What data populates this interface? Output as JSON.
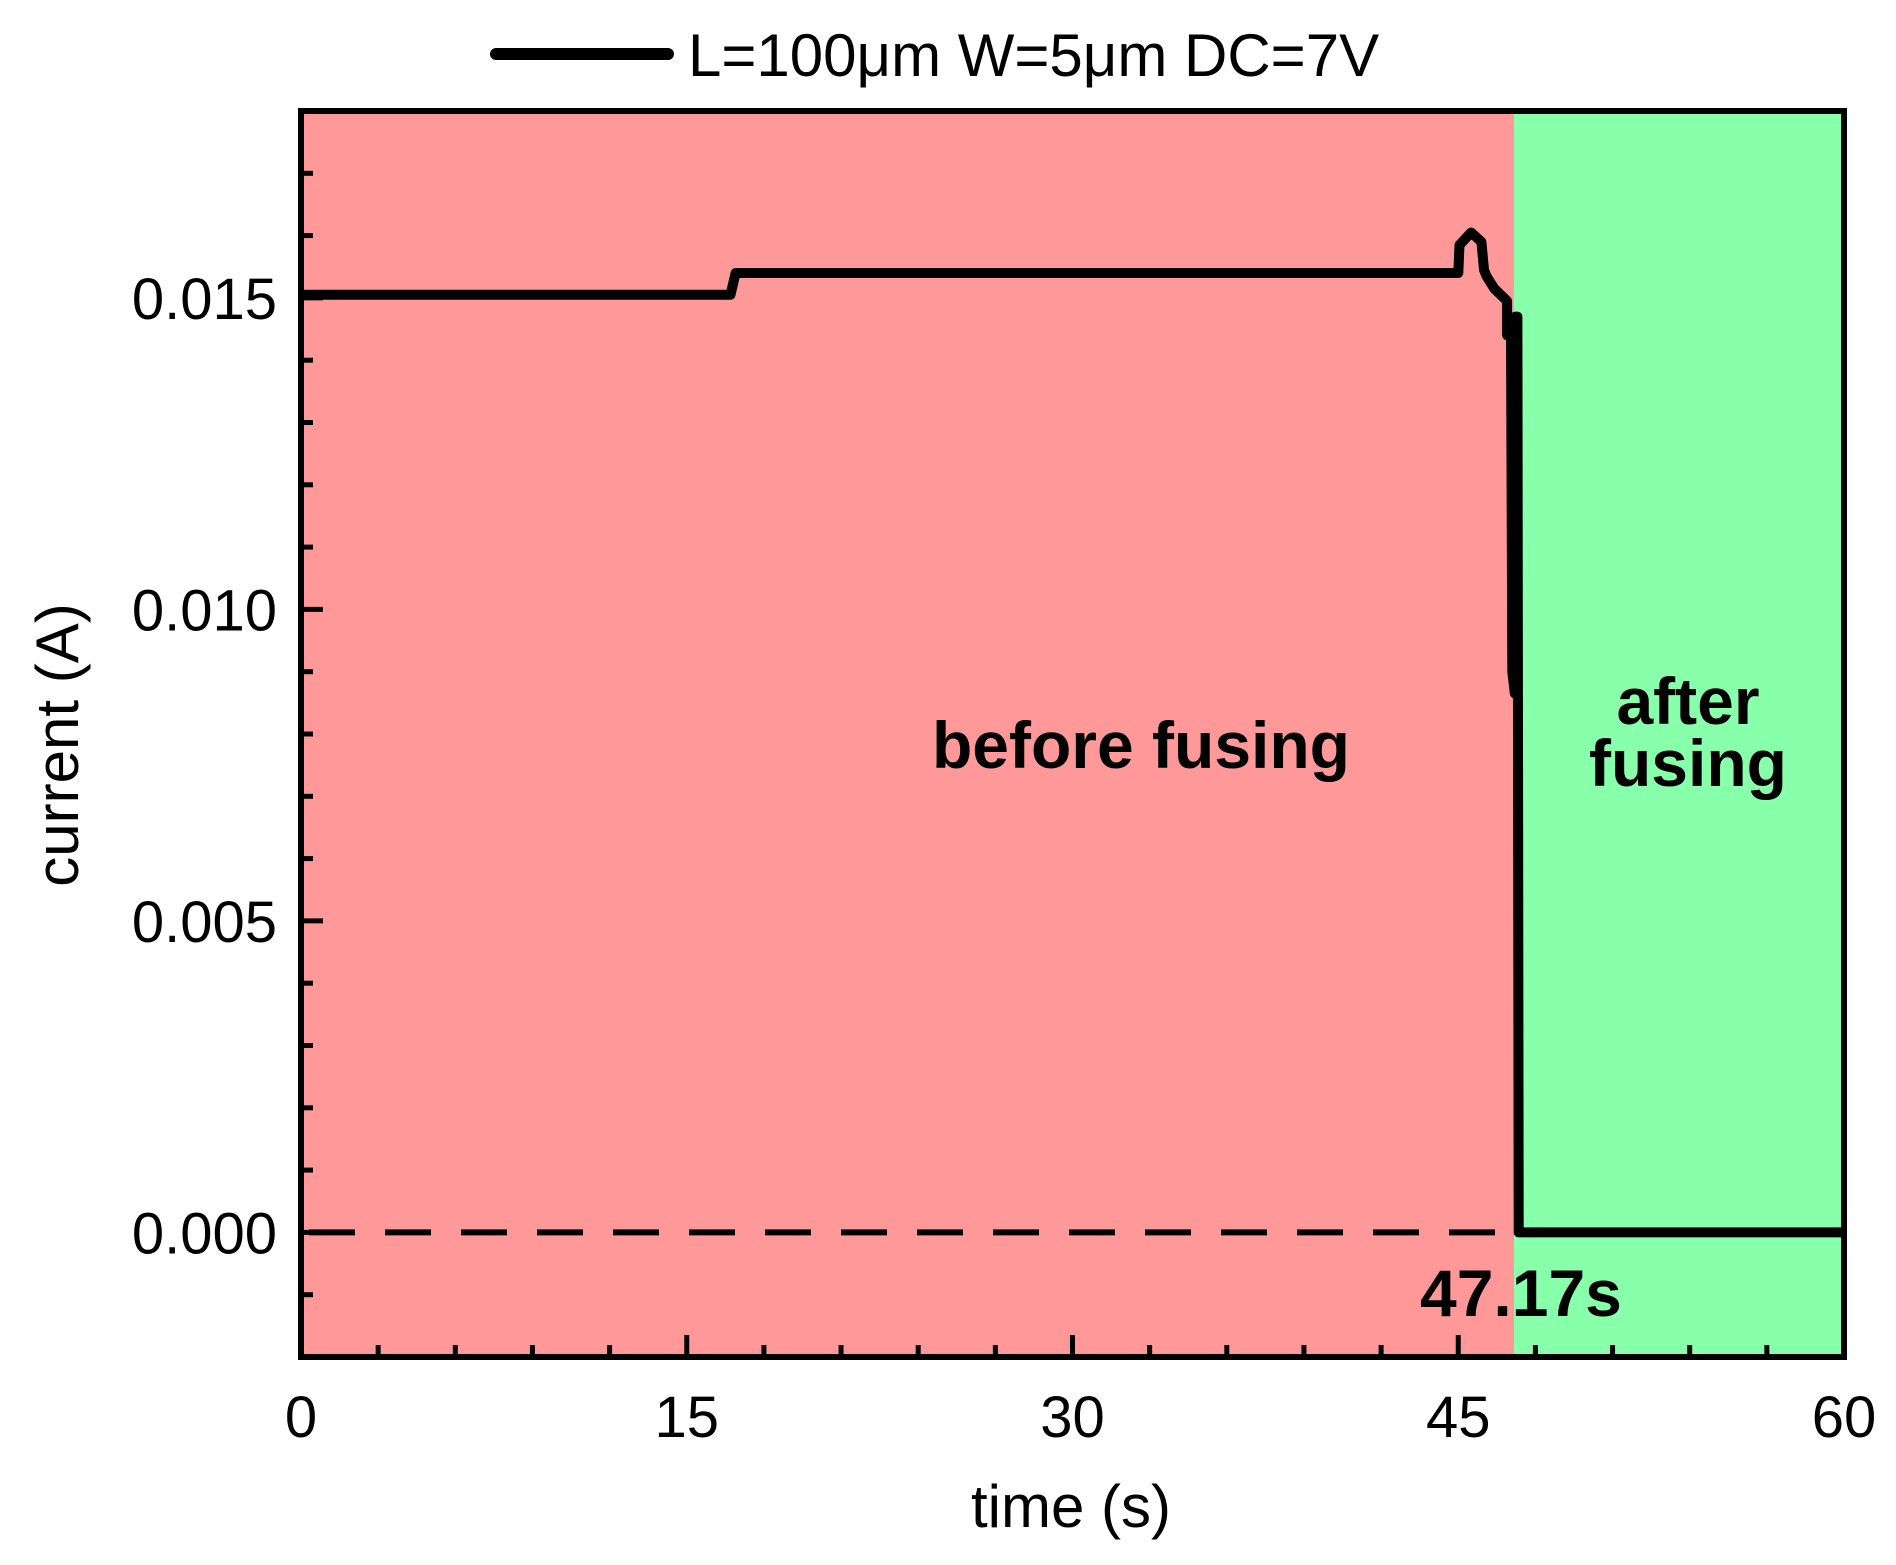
{
  "chart_data": {
    "type": "line",
    "legend": {
      "label": "L=100μm W=5μm DC=7V",
      "placement": "top-center"
    },
    "xlabel": "time (s)",
    "ylabel": "current (A)",
    "xlim": [
      0,
      60
    ],
    "ylim": [
      -0.002,
      0.018
    ],
    "x_ticks": [
      0,
      15,
      30,
      45,
      60
    ],
    "x_tick_labels": [
      "0",
      "15",
      "30",
      "45",
      "60"
    ],
    "y_ticks": [
      0.0,
      0.005,
      0.01,
      0.015
    ],
    "y_tick_labels": [
      "0.000",
      "0.005",
      "0.010",
      "0.015"
    ],
    "x_minor_step": 3,
    "y_minor_step": 0.001,
    "regions": [
      {
        "name": "before fusing",
        "label": "before fusing",
        "x_range": [
          0,
          47.17
        ],
        "color": "#ff9999"
      },
      {
        "name": "after fusing",
        "label_lines": [
          "after",
          "fusing"
        ],
        "x_range": [
          47.17,
          60
        ],
        "color": "#88ffaa"
      }
    ],
    "reference_line": {
      "y": 0.0,
      "x_range": [
        0,
        47.17
      ],
      "style": "dashed"
    },
    "annotation": "47.17s",
    "series": [
      {
        "name": "L=100μm W=5μm DC=7V",
        "color": "#000000",
        "points": [
          [
            0,
            0.01505
          ],
          [
            16.7,
            0.01505
          ],
          [
            16.9,
            0.0154
          ],
          [
            45.0,
            0.0154
          ],
          [
            45.05,
            0.01585
          ],
          [
            45.5,
            0.01605
          ],
          [
            45.9,
            0.0159
          ],
          [
            46.0,
            0.01545
          ],
          [
            46.1,
            0.01535
          ],
          [
            46.4,
            0.01515
          ],
          [
            46.9,
            0.01495
          ],
          [
            46.9,
            0.0144
          ],
          [
            47.05,
            0.0144
          ],
          [
            47.1,
            0.009
          ],
          [
            47.2,
            0.00865
          ],
          [
            47.22,
            0.0147
          ],
          [
            47.3,
            0.0147
          ],
          [
            47.35,
            0.0
          ],
          [
            60,
            0.0
          ]
        ]
      }
    ]
  }
}
